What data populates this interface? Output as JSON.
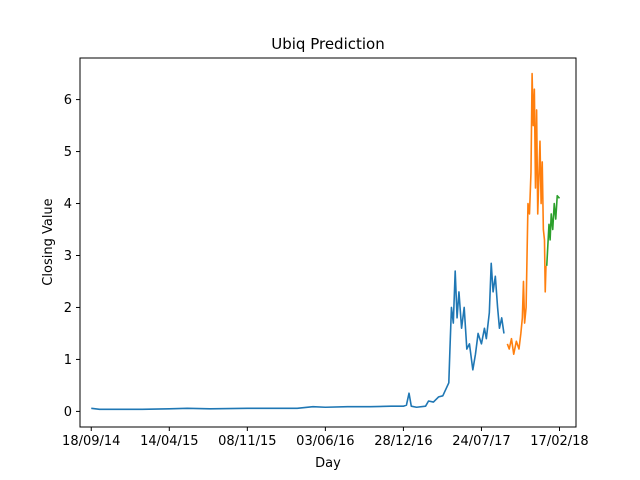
{
  "chart_data": {
    "type": "line",
    "title": "Ubiq Prediction",
    "xlabel": "Day",
    "ylabel": "Closing Value",
    "xlim": [
      "2014-08-19",
      "2018-04-02"
    ],
    "ylim": [
      -0.3,
      6.8
    ],
    "grid": false,
    "x_ticks": [
      {
        "date": "2014-09-18",
        "label": "18/09/14"
      },
      {
        "date": "2015-04-14",
        "label": "14/04/15"
      },
      {
        "date": "2015-11-08",
        "label": "08/11/15"
      },
      {
        "date": "2016-06-03",
        "label": "03/06/16"
      },
      {
        "date": "2016-12-28",
        "label": "28/12/16"
      },
      {
        "date": "2017-07-24",
        "label": "24/07/17"
      },
      {
        "date": "2018-02-17",
        "label": "17/02/18"
      }
    ],
    "y_ticks": [
      {
        "value": 0,
        "label": "0"
      },
      {
        "value": 1,
        "label": "1"
      },
      {
        "value": 2,
        "label": "2"
      },
      {
        "value": 3,
        "label": "3"
      },
      {
        "value": 4,
        "label": "4"
      },
      {
        "value": 5,
        "label": "5"
      },
      {
        "value": 6,
        "label": "6"
      }
    ],
    "series": [
      {
        "color": "#1f77b4",
        "points": [
          [
            "2014-09-18",
            0.06
          ],
          [
            "2014-10-10",
            0.04
          ],
          [
            "2014-12-01",
            0.04
          ],
          [
            "2015-02-01",
            0.04
          ],
          [
            "2015-04-14",
            0.05
          ],
          [
            "2015-06-01",
            0.06
          ],
          [
            "2015-08-01",
            0.05
          ],
          [
            "2015-11-08",
            0.06
          ],
          [
            "2016-01-15",
            0.06
          ],
          [
            "2016-03-20",
            0.06
          ],
          [
            "2016-05-01",
            0.09
          ],
          [
            "2016-06-03",
            0.08
          ],
          [
            "2016-08-01",
            0.09
          ],
          [
            "2016-10-01",
            0.09
          ],
          [
            "2016-11-25",
            0.1
          ],
          [
            "2016-12-20",
            0.1
          ],
          [
            "2016-12-28",
            0.1
          ],
          [
            "2017-01-05",
            0.12
          ],
          [
            "2017-01-12",
            0.35
          ],
          [
            "2017-01-18",
            0.1
          ],
          [
            "2017-02-01",
            0.08
          ],
          [
            "2017-02-25",
            0.1
          ],
          [
            "2017-03-05",
            0.2
          ],
          [
            "2017-03-18",
            0.18
          ],
          [
            "2017-04-01",
            0.28
          ],
          [
            "2017-04-12",
            0.3
          ],
          [
            "2017-04-28",
            0.55
          ],
          [
            "2017-05-01",
            1.2
          ],
          [
            "2017-05-05",
            2.0
          ],
          [
            "2017-05-10",
            1.7
          ],
          [
            "2017-05-15",
            2.7
          ],
          [
            "2017-05-20",
            1.8
          ],
          [
            "2017-05-25",
            2.3
          ],
          [
            "2017-06-01",
            1.6
          ],
          [
            "2017-06-08",
            2.0
          ],
          [
            "2017-06-15",
            1.2
          ],
          [
            "2017-06-22",
            1.3
          ],
          [
            "2017-07-01",
            0.8
          ],
          [
            "2017-07-08",
            1.1
          ],
          [
            "2017-07-15",
            1.5
          ],
          [
            "2017-07-24",
            1.3
          ],
          [
            "2017-08-01",
            1.6
          ],
          [
            "2017-08-06",
            1.4
          ],
          [
            "2017-08-14",
            1.9
          ],
          [
            "2017-08-19",
            2.85
          ],
          [
            "2017-08-24",
            2.3
          ],
          [
            "2017-08-30",
            2.6
          ],
          [
            "2017-09-05",
            2.0
          ],
          [
            "2017-09-10",
            1.6
          ],
          [
            "2017-09-16",
            1.8
          ],
          [
            "2017-09-22",
            1.5
          ]
        ]
      },
      {
        "color": "#ff7f0e",
        "points": [
          [
            "2017-10-01",
            1.3
          ],
          [
            "2017-10-06",
            1.2
          ],
          [
            "2017-10-12",
            1.4
          ],
          [
            "2017-10-18",
            1.1
          ],
          [
            "2017-10-25",
            1.35
          ],
          [
            "2017-11-01",
            1.2
          ],
          [
            "2017-11-06",
            1.5
          ],
          [
            "2017-11-10",
            1.8
          ],
          [
            "2017-11-13",
            2.5
          ],
          [
            "2017-11-16",
            1.7
          ],
          [
            "2017-11-20",
            2.0
          ],
          [
            "2017-11-25",
            4.0
          ],
          [
            "2017-11-29",
            3.8
          ],
          [
            "2017-12-03",
            4.6
          ],
          [
            "2017-12-06",
            6.5
          ],
          [
            "2017-12-09",
            5.5
          ],
          [
            "2017-12-12",
            6.2
          ],
          [
            "2017-12-15",
            4.3
          ],
          [
            "2017-12-18",
            5.8
          ],
          [
            "2017-12-21",
            3.8
          ],
          [
            "2017-12-24",
            4.5
          ],
          [
            "2017-12-27",
            5.2
          ],
          [
            "2017-12-30",
            4.0
          ],
          [
            "2018-01-02",
            4.8
          ],
          [
            "2018-01-05",
            3.5
          ],
          [
            "2018-01-08",
            3.3
          ],
          [
            "2018-01-10",
            2.3
          ],
          [
            "2018-01-12",
            2.8
          ]
        ]
      },
      {
        "color": "#2ca02c",
        "points": [
          [
            "2018-01-14",
            2.8
          ],
          [
            "2018-01-17",
            3.2
          ],
          [
            "2018-01-20",
            3.6
          ],
          [
            "2018-01-23",
            3.3
          ],
          [
            "2018-01-26",
            3.8
          ],
          [
            "2018-01-30",
            3.5
          ],
          [
            "2018-02-03",
            4.0
          ],
          [
            "2018-02-07",
            3.7
          ],
          [
            "2018-02-11",
            4.15
          ],
          [
            "2018-02-17",
            4.1
          ]
        ]
      }
    ]
  }
}
